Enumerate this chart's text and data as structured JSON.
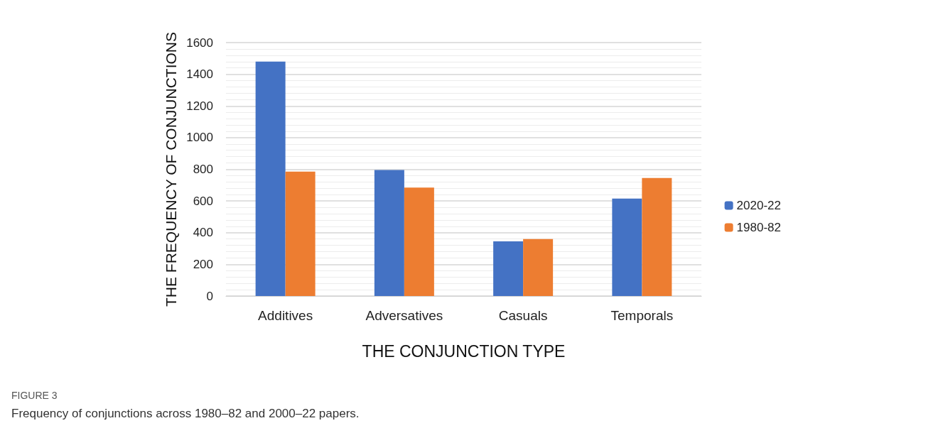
{
  "chart_data": {
    "type": "bar",
    "xlabel": "THE CONJUNCTION TYPE",
    "ylabel": "THE FREQUENCY OF CONJUNCTIONS",
    "categories": [
      "Additives",
      "Adversatives",
      "Casuals",
      "Temporals"
    ],
    "series": [
      {
        "name": "2020-22",
        "color": "#4472c4",
        "values": [
          1480,
          795,
          345,
          615
        ]
      },
      {
        "name": "1980-82",
        "color": "#ed7d31",
        "values": [
          785,
          685,
          360,
          745
        ]
      }
    ],
    "ylim": [
      0,
      1600
    ],
    "yticks": [
      0,
      200,
      400,
      600,
      800,
      1000,
      1200,
      1400,
      1600
    ],
    "grid": "y",
    "legend": "right",
    "annotations": [
      "FIGURE 3",
      "Frequency of conjunctions across 1980–82 and 2000–22 papers."
    ]
  }
}
